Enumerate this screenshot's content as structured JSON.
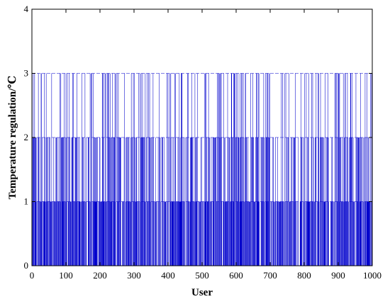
{
  "chart_data": {
    "type": "bar",
    "xlabel": "User",
    "ylabel": "Temperature regulation/℃",
    "xlim": [
      0,
      1000
    ],
    "ylim": [
      0,
      4
    ],
    "x_ticks": [
      "0",
      "100",
      "200",
      "300",
      "400",
      "500",
      "600",
      "700",
      "800",
      "900",
      "1000"
    ],
    "y_ticks": [
      "0",
      "1",
      "2",
      "3",
      "4"
    ],
    "grid": false,
    "legend": "none",
    "series": [
      {
        "color": "#0000cc",
        "x_range": [
          1,
          1000
        ],
        "value_levels": [
          0,
          1,
          2,
          3
        ],
        "approx_share_of_users_per_level": {
          "0": 0.25,
          "1": 0.35,
          "2": 0.25,
          "3": 0.15
        }
      }
    ]
  }
}
